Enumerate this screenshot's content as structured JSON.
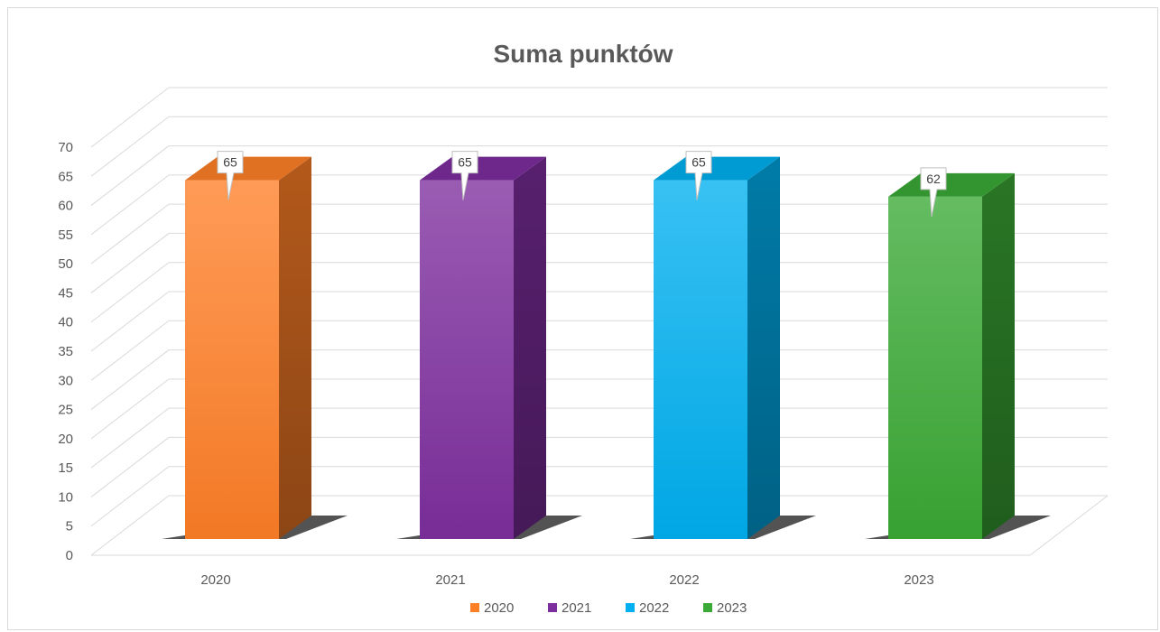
{
  "chart_data": {
    "type": "bar",
    "title": "Suma punktów",
    "categories": [
      "2020",
      "2021",
      "2022",
      "2023"
    ],
    "values": [
      65,
      65,
      65,
      62
    ],
    "series": [
      {
        "name": "2020",
        "values": [
          65,
          null,
          null,
          null
        ],
        "color": "#ff7f27"
      },
      {
        "name": "2021",
        "values": [
          null,
          65,
          null,
          null
        ],
        "color": "#7d2e9e"
      },
      {
        "name": "2022",
        "values": [
          null,
          null,
          65,
          null
        ],
        "color": "#00b0f0"
      },
      {
        "name": "2023",
        "values": [
          null,
          null,
          null,
          62
        ],
        "color": "#3aa935"
      }
    ],
    "ylim": [
      0,
      70
    ],
    "yticks": [
      0,
      5,
      10,
      15,
      20,
      25,
      30,
      35,
      40,
      45,
      50,
      55,
      60,
      65,
      70
    ],
    "grid": true,
    "legend": "bottom",
    "style": "3d-column",
    "data_labels": [
      "65",
      "65",
      "65",
      "62"
    ]
  }
}
